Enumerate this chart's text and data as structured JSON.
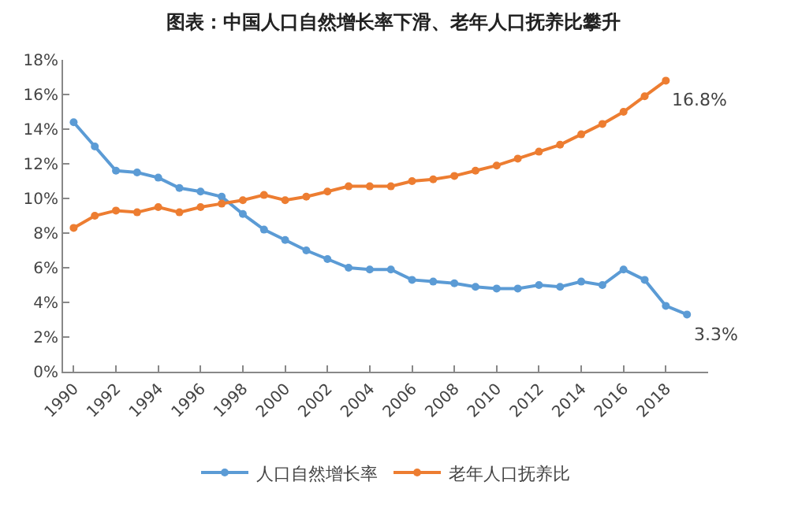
{
  "chart_data": {
    "type": "line",
    "title": "图表：中国人口自然增长率下滑、老年人口抚养比攀升",
    "x": [
      1990,
      1991,
      1992,
      1993,
      1994,
      1995,
      1996,
      1997,
      1998,
      1999,
      2000,
      2001,
      2002,
      2003,
      2004,
      2005,
      2006,
      2007,
      2008,
      2009,
      2010,
      2011,
      2012,
      2013,
      2014,
      2015,
      2016,
      2017,
      2018,
      2019
    ],
    "series": [
      {
        "name": "人口自然增长率",
        "color": "#5b9bd5",
        "values": [
          14.4,
          13.0,
          11.6,
          11.5,
          11.2,
          10.6,
          10.4,
          10.1,
          9.1,
          8.2,
          7.6,
          7.0,
          6.5,
          6.0,
          5.9,
          5.9,
          5.3,
          5.2,
          5.1,
          4.9,
          4.8,
          4.8,
          5.0,
          4.9,
          5.2,
          5.0,
          5.9,
          5.3,
          3.8,
          3.3
        ]
      },
      {
        "name": "老年人口抚养比",
        "color": "#ed7d31",
        "values": [
          8.3,
          9.0,
          9.3,
          9.2,
          9.5,
          9.2,
          9.5,
          9.7,
          9.9,
          10.2,
          9.9,
          10.1,
          10.4,
          10.7,
          10.7,
          10.7,
          11.0,
          11.1,
          11.3,
          11.6,
          11.9,
          12.3,
          12.7,
          13.1,
          13.7,
          14.3,
          15.0,
          15.9,
          16.8,
          null
        ]
      }
    ],
    "annotations": [
      {
        "text": "16.8%",
        "x": 2018,
        "y": 16.8
      },
      {
        "text": "3.3%",
        "x": 2019,
        "y": 3.3
      }
    ],
    "xlim": [
      1989.5,
      2020
    ],
    "xticks": [
      1990,
      1992,
      1994,
      1996,
      1998,
      2000,
      2002,
      2004,
      2006,
      2008,
      2010,
      2012,
      2014,
      2016,
      2018
    ],
    "ylim": [
      0,
      18
    ],
    "yticks": [
      {
        "value": 0,
        "label": "0%"
      },
      {
        "value": 2,
        "label": "2%"
      },
      {
        "value": 4,
        "label": "4%"
      },
      {
        "value": 6,
        "label": "6%"
      },
      {
        "value": 8,
        "label": "8%"
      },
      {
        "value": 10,
        "label": "10%"
      },
      {
        "value": 12,
        "label": "12%"
      },
      {
        "value": 14,
        "label": "14%"
      },
      {
        "value": 16,
        "label": "16%"
      },
      {
        "value": 18,
        "label": "18%"
      }
    ],
    "legend": "bottom",
    "marker": "circle",
    "line_style": "solid"
  }
}
